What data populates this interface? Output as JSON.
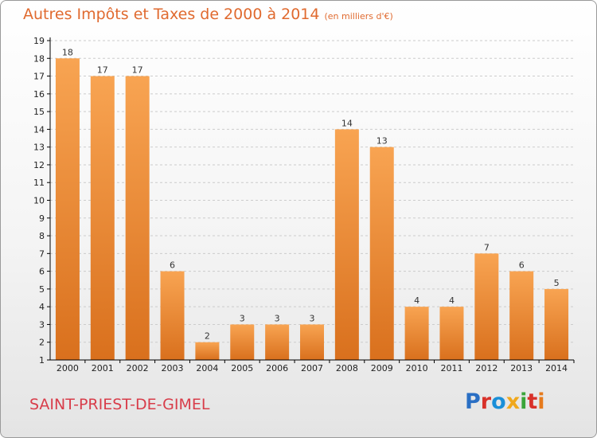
{
  "title": "Autres Impôts et Taxes de 2000 à 2014",
  "subtitle": "(en milliers d'€)",
  "town": "SAINT-PRIEST-DE-GIMEL",
  "logo": {
    "text": "Proxiti",
    "colors": [
      "#2a6fc4",
      "#d8312a",
      "#1a8fd8",
      "#f0a81c",
      "#3aa53a",
      "#d8312a",
      "#e67a1c"
    ]
  },
  "colors": {
    "title": "#e06a2f",
    "town": "#d83d4a",
    "bar_top": "#f8a452",
    "bar_bottom": "#d9701d",
    "axis": "#000000",
    "grid": "#cccccc"
  },
  "chart_data": {
    "type": "bar",
    "categories": [
      "2000",
      "2001",
      "2002",
      "2003",
      "2004",
      "2005",
      "2006",
      "2007",
      "2008",
      "2009",
      "2010",
      "2011",
      "2012",
      "2013",
      "2014"
    ],
    "values": [
      18,
      17,
      17,
      6,
      2,
      3,
      3,
      3,
      14,
      13,
      4,
      4,
      7,
      6,
      5
    ],
    "yticks": [
      1,
      2,
      3,
      4,
      5,
      6,
      7,
      8,
      9,
      10,
      11,
      12,
      13,
      14,
      15,
      16,
      17,
      18,
      19
    ],
    "ylim": [
      1,
      19
    ],
    "grid": true,
    "data_labels": true
  }
}
